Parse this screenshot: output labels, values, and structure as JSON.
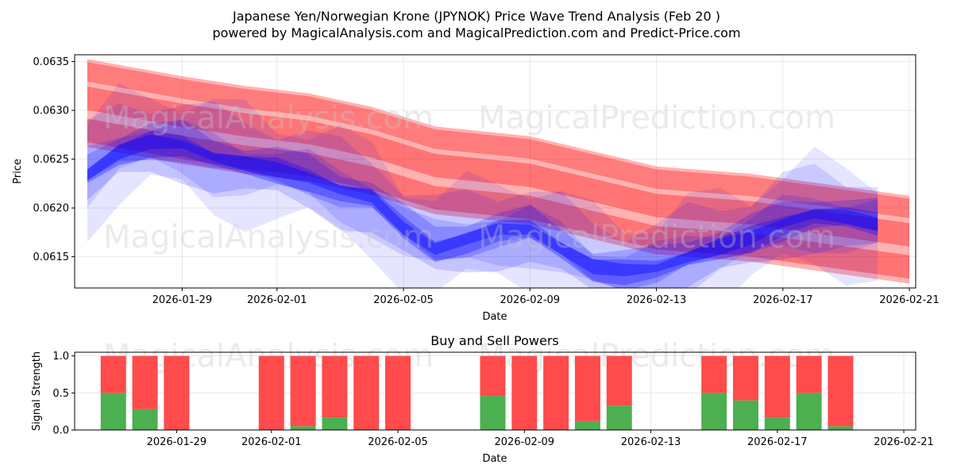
{
  "figure": {
    "title": "Japanese Yen/Norwegian Krone (JPYNOK) Price Wave Trend Analysis (Feb 20 )",
    "subtitle": "powered by MagicalAnalysis.com and MagicalPrediction.com and Predict-Price.com",
    "watermarks": [
      "MagicalAnalysis.com",
      "MagicalPrediction.com"
    ]
  },
  "colors": {
    "prediction_band": "#ff0000",
    "history_band": "#0000ff",
    "buy": "#4caf50",
    "sell": "#ff4b4b"
  },
  "chart_data": [
    {
      "type": "area",
      "name": "price-wave-trend",
      "xlabel": "Date",
      "ylabel": "Price",
      "xlim": [
        "2026-01-25.6",
        "2026-02-21.2"
      ],
      "ylim": [
        0.06118,
        0.06357
      ],
      "x_ticks": [
        "2026-01-29",
        "2026-02-01",
        "2026-02-05",
        "2026-02-09",
        "2026-02-13",
        "2026-02-17",
        "2026-02-21"
      ],
      "y_ticks": [
        "0.0615",
        "0.0620",
        "0.0625",
        "0.0630",
        "0.0635"
      ],
      "grid": true,
      "series": [
        {
          "name": "historical-wave",
          "color": "blue",
          "dates": [
            "2026-01-26",
            "2026-01-27",
            "2026-01-28",
            "2026-01-29",
            "2026-01-30",
            "2026-01-31",
            "2026-02-01",
            "2026-02-02",
            "2026-02-03",
            "2026-02-04",
            "2026-02-05",
            "2026-02-06",
            "2026-02-07",
            "2026-02-08",
            "2026-02-09",
            "2026-02-10",
            "2026-02-11",
            "2026-02-12",
            "2026-02-13",
            "2026-02-14",
            "2026-02-15",
            "2026-02-16",
            "2026-02-17",
            "2026-02-18",
            "2026-02-19",
            "2026-02-20"
          ],
          "values": [
            0.06235,
            0.06258,
            0.06267,
            0.06265,
            0.06252,
            0.06245,
            0.0624,
            0.06232,
            0.06218,
            0.0621,
            0.0618,
            0.0616,
            0.06168,
            0.06176,
            0.06178,
            0.0616,
            0.0614,
            0.06135,
            0.06138,
            0.0615,
            0.0616,
            0.0617,
            0.06185,
            0.06193,
            0.0619,
            0.06185
          ]
        },
        {
          "name": "prediction-band-upper",
          "color": "red",
          "dates": [
            "2026-01-26",
            "2026-01-29",
            "2026-01-31",
            "2026-02-02",
            "2026-02-04",
            "2026-02-06",
            "2026-02-09",
            "2026-02-13",
            "2026-02-16",
            "2026-02-21"
          ],
          "values": [
            0.06335,
            0.0632,
            0.06308,
            0.063,
            0.06285,
            0.06265,
            0.06255,
            0.06225,
            0.0622,
            0.06195
          ]
        },
        {
          "name": "prediction-band-lower",
          "color": "red",
          "dates": [
            "2026-01-26",
            "2026-01-29",
            "2026-01-31",
            "2026-02-02",
            "2026-02-04",
            "2026-02-06",
            "2026-02-09",
            "2026-02-13",
            "2026-02-16",
            "2026-02-21"
          ],
          "values": [
            0.063,
            0.0628,
            0.06272,
            0.06265,
            0.06252,
            0.06232,
            0.06222,
            0.0619,
            0.0618,
            0.0616
          ]
        }
      ]
    },
    {
      "type": "bar",
      "name": "buy-and-sell-powers",
      "title": "Buy and Sell Powers",
      "xlabel": "Date",
      "ylabel": "Signal Strength",
      "ylim": [
        0,
        1.05
      ],
      "y_ticks": [
        "0.0",
        "0.5",
        "1.0"
      ],
      "x_ticks": [
        "2026-01-29",
        "2026-02-01",
        "2026-02-05",
        "2026-02-09",
        "2026-02-13",
        "2026-02-17",
        "2026-02-21"
      ],
      "categories": [
        "2026-01-27",
        "2026-01-28",
        "2026-01-29",
        "2026-02-01",
        "2026-02-02",
        "2026-02-03",
        "2026-02-04",
        "2026-02-05",
        "2026-02-08",
        "2026-02-09",
        "2026-02-10",
        "2026-02-11",
        "2026-02-12",
        "2026-02-15",
        "2026-02-16",
        "2026-02-17",
        "2026-02-18",
        "2026-02-19"
      ],
      "series": [
        {
          "name": "Buy",
          "values": [
            0.5,
            0.28,
            0.0,
            0.0,
            0.05,
            0.17,
            0.0,
            0.0,
            0.46,
            0.0,
            0.0,
            0.12,
            0.33,
            0.5,
            0.4,
            0.17,
            0.5,
            0.05
          ]
        },
        {
          "name": "Sell",
          "values": [
            0.5,
            0.72,
            1.0,
            1.0,
            0.95,
            0.83,
            1.0,
            1.0,
            0.54,
            1.0,
            1.0,
            0.88,
            0.67,
            0.5,
            0.6,
            0.83,
            0.5,
            0.95
          ]
        }
      ]
    }
  ]
}
